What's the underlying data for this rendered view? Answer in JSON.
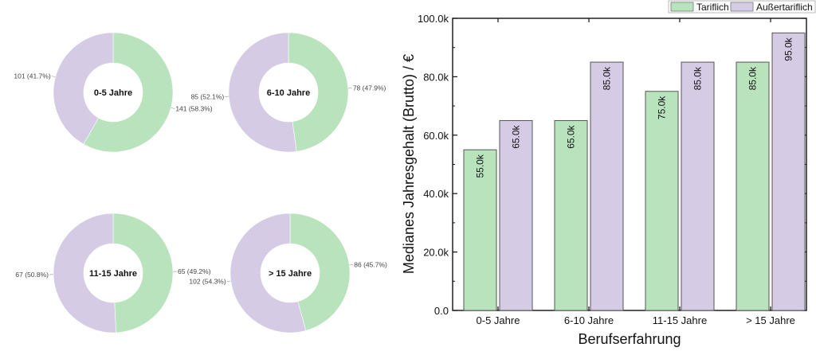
{
  "chart_data": [
    {
      "type": "pie",
      "subtype": "donut",
      "title": "0-5 Jahre",
      "slices": [
        {
          "name": "Tariflich",
          "value": 141,
          "label": "141 (58.3%)",
          "color": "#b9e3bd"
        },
        {
          "name": "Außertariflich",
          "value": 101,
          "label": "101 (41.7%)",
          "color": "#d6cbe5"
        }
      ]
    },
    {
      "type": "pie",
      "subtype": "donut",
      "title": "6-10 Jahre",
      "slices": [
        {
          "name": "Tariflich",
          "value": 78,
          "label": "78 (47.9%)",
          "color": "#b9e3bd"
        },
        {
          "name": "Außertariflich",
          "value": 85,
          "label": "85 (52.1%)",
          "color": "#d6cbe5"
        }
      ]
    },
    {
      "type": "pie",
      "subtype": "donut",
      "title": "11-15 Jahre",
      "slices": [
        {
          "name": "Tariflich",
          "value": 65,
          "label": "65 (49.2%)",
          "color": "#b9e3bd"
        },
        {
          "name": "Außertariflich",
          "value": 67,
          "label": "67 (50.8%)",
          "color": "#d6cbe5"
        }
      ]
    },
    {
      "type": "pie",
      "subtype": "donut",
      "title": "> 15 Jahre",
      "slices": [
        {
          "name": "Tariflich",
          "value": 86,
          "label": "86 (45.7%)",
          "color": "#b9e3bd"
        },
        {
          "name": "Außertariflich",
          "value": 102,
          "label": "102 (54.3%)",
          "color": "#d6cbe5"
        }
      ]
    },
    {
      "type": "bar",
      "title": "",
      "xlabel": "Berufserfahrung",
      "ylabel": "Medianes Jahresgehalt (Brutto) / €",
      "categories": [
        "0-5 Jahre",
        "6-10 Jahre",
        "11-15 Jahre",
        "> 15 Jahre"
      ],
      "series": [
        {
          "name": "Tariflich",
          "values": [
            55000,
            65000,
            75000,
            85000
          ],
          "labels": [
            "55.0k",
            "65.0k",
            "75.0k",
            "85.0k"
          ],
          "color": "#b9e3bd"
        },
        {
          "name": "Außertariflich",
          "values": [
            65000,
            85000,
            85000,
            95000
          ],
          "labels": [
            "65.0k",
            "85.0k",
            "85.0k",
            "95.0k"
          ],
          "color": "#d6cbe5"
        }
      ],
      "ylim": [
        0,
        100000
      ],
      "yticks": [
        0,
        20000,
        40000,
        60000,
        80000,
        100000
      ],
      "ytick_labels": [
        "0.0",
        "20.0k",
        "40.0k",
        "60.0k",
        "80.0k",
        "100.0k"
      ],
      "grid": false,
      "legend_position": "top-right"
    }
  ],
  "legend": {
    "items": [
      {
        "label": "Tariflich",
        "color": "#b9e3bd"
      },
      {
        "label": "Außertariflich",
        "color": "#d6cbe5"
      }
    ]
  }
}
